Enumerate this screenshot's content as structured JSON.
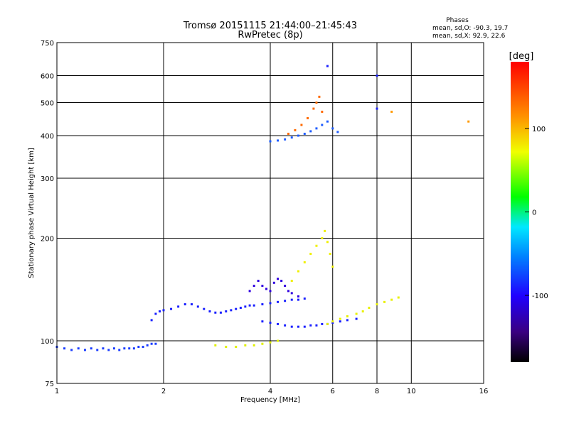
{
  "chart_data": {
    "type": "scatter",
    "title": "Tromsø 20151115 21:44:00–21:45:43",
    "subtitle": "RwPretec (8p)",
    "stats_title": "Phases",
    "stats_lines": [
      "mean, sd,O: -90.3, 19.7",
      "mean, sd,X:  92.9, 22.6"
    ],
    "xlabel": "Frequency [MHz]",
    "ylabel": "Stationary phase Virtual Height [km]",
    "x_scale": "log",
    "y_scale": "log",
    "xlim": [
      1,
      16
    ],
    "ylim": [
      75,
      750
    ],
    "x_ticks": [
      1,
      2,
      4,
      6,
      8,
      10,
      16
    ],
    "x_tick_labels": [
      "1",
      "2",
      "4",
      "6",
      "8",
      "10",
      "16"
    ],
    "y_ticks": [
      75,
      100,
      200,
      300,
      400,
      500,
      600,
      750
    ],
    "y_tick_labels": [
      "75",
      "100",
      "200",
      "300",
      "400",
      "500",
      "600",
      "750"
    ],
    "grid": true,
    "colorbar": {
      "label": "[deg]",
      "range": [
        -180,
        180
      ],
      "ticks": [
        100,
        0,
        -100
      ],
      "tick_labels": [
        "100",
        "0",
        "-100"
      ]
    },
    "series": [
      {
        "phase_deg": -95,
        "color": "#1a3cff",
        "points": [
          [
            1.0,
            96
          ],
          [
            1.05,
            95
          ],
          [
            1.1,
            94
          ],
          [
            1.15,
            95
          ],
          [
            1.2,
            94
          ],
          [
            1.25,
            95
          ],
          [
            1.3,
            94
          ],
          [
            1.35,
            95
          ],
          [
            1.4,
            94
          ],
          [
            1.45,
            95
          ],
          [
            1.5,
            94
          ],
          [
            1.55,
            95
          ],
          [
            1.6,
            95
          ],
          [
            1.65,
            95
          ],
          [
            1.7,
            96
          ],
          [
            1.75,
            96
          ],
          [
            1.8,
            97
          ],
          [
            1.85,
            98
          ],
          [
            1.9,
            98
          ]
        ]
      },
      {
        "phase_deg": -100,
        "color": "#1a20ff",
        "points": [
          [
            1.85,
            115
          ],
          [
            1.9,
            120
          ],
          [
            1.95,
            122
          ],
          [
            2.0,
            123
          ],
          [
            2.1,
            124
          ],
          [
            2.2,
            126
          ],
          [
            2.3,
            128
          ],
          [
            2.4,
            128
          ],
          [
            2.5,
            126
          ],
          [
            2.6,
            124
          ],
          [
            2.7,
            122
          ],
          [
            2.8,
            121
          ],
          [
            2.9,
            121
          ],
          [
            3.0,
            122
          ],
          [
            3.1,
            123
          ],
          [
            3.2,
            124
          ],
          [
            3.3,
            125
          ],
          [
            3.4,
            126
          ],
          [
            3.5,
            127
          ],
          [
            3.6,
            127
          ],
          [
            3.8,
            128
          ],
          [
            4.0,
            129
          ],
          [
            4.2,
            130
          ],
          [
            4.4,
            131
          ],
          [
            4.6,
            132
          ],
          [
            4.8,
            132
          ],
          [
            5.0,
            133
          ]
        ]
      },
      {
        "phase_deg": -110,
        "color": "#3000e0",
        "points": [
          [
            3.5,
            140
          ],
          [
            3.6,
            145
          ],
          [
            3.7,
            150
          ],
          [
            3.8,
            145
          ],
          [
            3.9,
            142
          ],
          [
            4.0,
            140
          ],
          [
            4.1,
            148
          ],
          [
            4.2,
            152
          ],
          [
            4.3,
            150
          ],
          [
            4.4,
            145
          ],
          [
            4.5,
            140
          ],
          [
            4.6,
            138
          ],
          [
            4.8,
            135
          ]
        ]
      },
      {
        "phase_deg": -100,
        "color": "#1a20ff",
        "points": [
          [
            3.8,
            114
          ],
          [
            4.0,
            113
          ],
          [
            4.2,
            112
          ],
          [
            4.4,
            111
          ],
          [
            4.6,
            110
          ],
          [
            4.8,
            110
          ],
          [
            5.0,
            110
          ],
          [
            5.2,
            111
          ],
          [
            5.4,
            111
          ],
          [
            5.6,
            112
          ],
          [
            5.8,
            112
          ],
          [
            6.0,
            113
          ],
          [
            6.3,
            114
          ],
          [
            6.6,
            115
          ],
          [
            7.0,
            116
          ]
        ]
      },
      {
        "phase_deg": 50,
        "color": "#e0f000",
        "points": [
          [
            2.8,
            97
          ],
          [
            3.0,
            96
          ],
          [
            3.2,
            96
          ],
          [
            3.4,
            97
          ],
          [
            3.6,
            97
          ],
          [
            3.8,
            98
          ],
          [
            4.0,
            99
          ],
          [
            4.2,
            100
          ]
        ]
      },
      {
        "phase_deg": 55,
        "color": "#f0f000",
        "points": [
          [
            4.6,
            150
          ],
          [
            4.8,
            160
          ],
          [
            5.0,
            170
          ],
          [
            5.2,
            180
          ],
          [
            5.4,
            190
          ],
          [
            5.6,
            200
          ],
          [
            5.7,
            210
          ],
          [
            5.8,
            195
          ],
          [
            5.9,
            180
          ],
          [
            6.0,
            165
          ]
        ]
      },
      {
        "phase_deg": 55,
        "color": "#e8f000",
        "points": [
          [
            5.8,
            112
          ],
          [
            6.0,
            114
          ],
          [
            6.3,
            116
          ],
          [
            6.6,
            118
          ],
          [
            7.0,
            120
          ],
          [
            7.3,
            122
          ],
          [
            7.6,
            125
          ],
          [
            8.0,
            128
          ],
          [
            8.4,
            130
          ],
          [
            8.8,
            132
          ],
          [
            9.2,
            134
          ]
        ]
      },
      {
        "phase_deg": -90,
        "color": "#1e5cff",
        "points": [
          [
            4.0,
            385
          ],
          [
            4.2,
            387
          ],
          [
            4.4,
            390
          ],
          [
            4.6,
            395
          ],
          [
            4.8,
            400
          ],
          [
            5.0,
            405
          ],
          [
            5.2,
            412
          ],
          [
            5.4,
            420
          ],
          [
            5.6,
            430
          ],
          [
            5.8,
            440
          ],
          [
            6.0,
            420
          ],
          [
            6.2,
            410
          ]
        ]
      },
      {
        "phase_deg": 130,
        "color": "#ff6a00",
        "points": [
          [
            4.5,
            405
          ],
          [
            4.7,
            415
          ],
          [
            4.9,
            430
          ],
          [
            5.1,
            450
          ],
          [
            5.3,
            480
          ],
          [
            5.4,
            500
          ],
          [
            5.5,
            520
          ],
          [
            5.6,
            470
          ]
        ]
      },
      {
        "phase_deg": -110,
        "color": "#1a20ff",
        "points": [
          [
            5.8,
            640
          ],
          [
            8.0,
            600
          ],
          [
            8.0,
            480
          ]
        ]
      },
      {
        "phase_deg": 110,
        "color": "#ff9a00",
        "points": [
          [
            8.8,
            470
          ],
          [
            14.5,
            440
          ]
        ]
      }
    ]
  }
}
